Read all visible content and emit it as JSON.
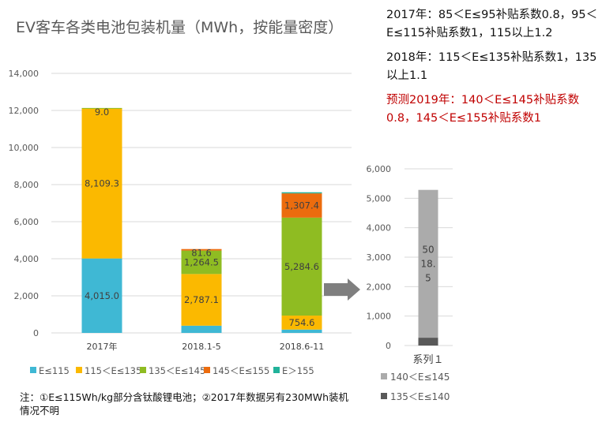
{
  "chart_data": [
    {
      "type": "bar",
      "stacked": true,
      "title": "EV客车各类电池包装机量（MWh，按能量密度）",
      "categories": [
        "2017年",
        "2018.1-5",
        "2018.6-11"
      ],
      "ylim": [
        0,
        14000
      ],
      "yticks": [
        "0",
        "2,000",
        "4,000",
        "6,000",
        "8,000",
        "10,000",
        "12,000",
        "14,000"
      ],
      "grid": true,
      "legend_position": "bottom",
      "series": [
        {
          "name": "E≤115",
          "color": "#3fb8d4",
          "values": [
            4015.0,
            390,
            180
          ],
          "labels": [
            "4,015.0",
            "",
            ""
          ]
        },
        {
          "name": "115＜E≤135",
          "color": "#fbb900",
          "values": [
            8109.3,
            2787.1,
            754.6
          ],
          "labels": [
            "8,109.3",
            "2,787.1",
            "754.6"
          ]
        },
        {
          "name": "135＜E≤145",
          "color": "#8fbc22",
          "values": [
            9.0,
            1264.5,
            5284.6
          ],
          "labels": [
            "9.0",
            "1,264.5",
            "5,284.6"
          ]
        },
        {
          "name": "145＜E≤155",
          "color": "#ec6c0e",
          "values": [
            0,
            81.6,
            1307.4
          ],
          "labels": [
            "",
            "81.6",
            "1,307.4"
          ]
        },
        {
          "name": "E＞155",
          "color": "#21b29a",
          "values": [
            0,
            0,
            60
          ],
          "labels": [
            "",
            "",
            ""
          ]
        }
      ]
    },
    {
      "type": "bar",
      "stacked": true,
      "categories": [
        "系列１"
      ],
      "ylim": [
        0,
        6000
      ],
      "yticks": [
        "0",
        "1,000",
        "2,000",
        "3,000",
        "4,000",
        "5,000",
        "6,000"
      ],
      "grid": true,
      "legend_position": "bottom",
      "series": [
        {
          "name": "135＜E≤140",
          "color": "#595959",
          "values": [
            266
          ],
          "labels": [
            ""
          ]
        },
        {
          "name": "140＜E≤145",
          "color": "#ababab",
          "values": [
            5018.5
          ],
          "labels": [
            "50 18. 5"
          ]
        }
      ]
    }
  ],
  "notes": {
    "line1": "2017年：85＜E≤95补贴系数0.8，95＜E≤115补贴系数1，115以上1.2",
    "line2": "2018年：115＜E≤135补贴系数1，135以上1.1",
    "line3": "预测2019年：140＜E≤145补贴系数0.8，145＜E≤155补贴系数1"
  },
  "footnote": "注：①E≤115Wh/kg部分含钛酸锂电池；②2017年数据另有230MWh装机情况不明",
  "colors": {
    "arrow": "#7f7f7f",
    "highlight_text": "#c00000"
  }
}
